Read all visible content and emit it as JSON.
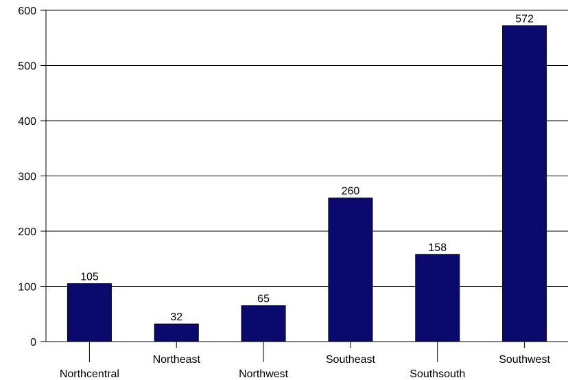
{
  "chart_data": {
    "type": "bar",
    "categories": [
      "Northcentral",
      "Northeast",
      "Northwest",
      "Southeast",
      "Southsouth",
      "Southwest"
    ],
    "values": [
      105,
      32,
      65,
      260,
      158,
      572
    ],
    "data_labels": [
      "105",
      "32",
      "65",
      "260",
      "158",
      "572"
    ],
    "title": "",
    "xlabel": "",
    "ylabel": "",
    "ylim": [
      0,
      600
    ],
    "yticks": [
      0,
      100,
      200,
      300,
      400,
      500,
      600
    ],
    "ytick_labels": [
      "0",
      "100",
      "200",
      "300",
      "400",
      "500",
      "600"
    ],
    "grid": true,
    "legend": "none",
    "bar_color": "#0a0a6e",
    "category_label_rows": [
      "low",
      "high",
      "low",
      "high",
      "low",
      "high"
    ]
  }
}
